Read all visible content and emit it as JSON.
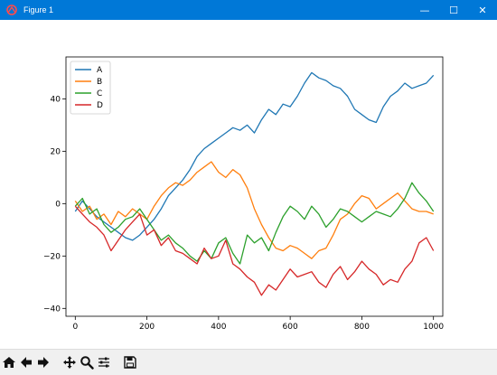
{
  "window": {
    "title": "Figure 1",
    "controls": {
      "minimize": "—",
      "maximize": "☐",
      "close": "✕"
    }
  },
  "toolbar": {
    "buttons": [
      {
        "name": "home-button",
        "icon": "home-icon"
      },
      {
        "name": "back-button",
        "icon": "arrow-left-icon"
      },
      {
        "name": "forward-button",
        "icon": "arrow-right-icon"
      },
      {
        "name": "pan-button",
        "icon": "move-icon"
      },
      {
        "name": "zoom-button",
        "icon": "magnifier-icon"
      },
      {
        "name": "configure-subplots-button",
        "icon": "sliders-icon"
      },
      {
        "name": "save-button",
        "icon": "floppy-disk-icon"
      }
    ]
  },
  "chart_data": {
    "type": "line",
    "title": "",
    "xlabel": "",
    "ylabel": "",
    "xlim": [
      -26,
      1026
    ],
    "ylim": [
      -43,
      56
    ],
    "xticks": [
      0,
      200,
      400,
      600,
      800,
      1000
    ],
    "yticks": [
      -40,
      -20,
      0,
      20,
      40
    ],
    "grid": false,
    "legend_position": "upper-left",
    "series": [
      {
        "name": "A",
        "color": "#1f77b4",
        "x": [
          0,
          20,
          40,
          60,
          80,
          100,
          120,
          140,
          160,
          180,
          200,
          220,
          240,
          260,
          280,
          300,
          320,
          340,
          360,
          380,
          400,
          420,
          440,
          460,
          480,
          500,
          520,
          540,
          560,
          580,
          600,
          620,
          640,
          660,
          680,
          700,
          720,
          740,
          760,
          780,
          800,
          820,
          840,
          860,
          880,
          900,
          920,
          940,
          960,
          980,
          1000
        ],
        "y": [
          -3,
          1,
          -2,
          -5,
          -7,
          -9,
          -11,
          -13,
          -14,
          -12,
          -9,
          -6,
          -2,
          3,
          6,
          9,
          13,
          18,
          21,
          23,
          25,
          27,
          29,
          28,
          30,
          27,
          32,
          36,
          34,
          38,
          37,
          41,
          46,
          50,
          48,
          47,
          45,
          44,
          41,
          36,
          34,
          32,
          31,
          37,
          41,
          43,
          46,
          44,
          45,
          46,
          49
        ]
      },
      {
        "name": "B",
        "color": "#ff7f0e",
        "x": [
          0,
          20,
          40,
          60,
          80,
          100,
          120,
          140,
          160,
          180,
          200,
          220,
          240,
          260,
          280,
          300,
          320,
          340,
          360,
          380,
          400,
          420,
          440,
          460,
          480,
          500,
          520,
          540,
          560,
          580,
          600,
          620,
          640,
          660,
          680,
          700,
          720,
          740,
          760,
          780,
          800,
          820,
          840,
          860,
          880,
          900,
          920,
          940,
          960,
          980,
          1000
        ],
        "y": [
          1,
          -3,
          -1,
          -6,
          -4,
          -8,
          -3,
          -5,
          -2,
          -4,
          -6,
          -1,
          3,
          6,
          8,
          7,
          9,
          12,
          14,
          16,
          12,
          10,
          13,
          11,
          6,
          -2,
          -8,
          -13,
          -17,
          -18,
          -16,
          -17,
          -19,
          -21,
          -18,
          -17,
          -12,
          -6,
          -4,
          0,
          3,
          2,
          -2,
          0,
          2,
          4,
          1,
          -2,
          -3,
          -3,
          -4
        ]
      },
      {
        "name": "C",
        "color": "#2ca02c",
        "x": [
          0,
          20,
          40,
          60,
          80,
          100,
          120,
          140,
          160,
          180,
          200,
          220,
          240,
          260,
          280,
          300,
          320,
          340,
          360,
          380,
          400,
          420,
          440,
          460,
          480,
          500,
          520,
          540,
          560,
          580,
          600,
          620,
          640,
          660,
          680,
          700,
          720,
          740,
          760,
          780,
          800,
          820,
          840,
          860,
          880,
          900,
          920,
          940,
          960,
          980,
          1000
        ],
        "y": [
          -1,
          2,
          -4,
          -2,
          -8,
          -11,
          -9,
          -6,
          -5,
          -2,
          -6,
          -10,
          -14,
          -12,
          -15,
          -17,
          -20,
          -22,
          -18,
          -21,
          -15,
          -13,
          -19,
          -23,
          -12,
          -15,
          -13,
          -18,
          -11,
          -5,
          -1,
          -3,
          -6,
          -1,
          -4,
          -9,
          -6,
          -2,
          -3,
          -5,
          -7,
          -5,
          -3,
          -4,
          -5,
          -2,
          2,
          8,
          4,
          1,
          -3
        ]
      },
      {
        "name": "D",
        "color": "#d62728",
        "x": [
          0,
          20,
          40,
          60,
          80,
          100,
          120,
          140,
          160,
          180,
          200,
          220,
          240,
          260,
          280,
          300,
          320,
          340,
          360,
          380,
          400,
          420,
          440,
          460,
          480,
          500,
          520,
          540,
          560,
          580,
          600,
          620,
          640,
          660,
          680,
          700,
          720,
          740,
          760,
          780,
          800,
          820,
          840,
          860,
          880,
          900,
          920,
          940,
          960,
          980,
          1000
        ],
        "y": [
          -1,
          -4,
          -7,
          -9,
          -12,
          -18,
          -14,
          -10,
          -7,
          -4,
          -12,
          -10,
          -16,
          -13,
          -18,
          -19,
          -21,
          -23,
          -17,
          -21,
          -20,
          -14,
          -23,
          -25,
          -28,
          -30,
          -35,
          -31,
          -33,
          -29,
          -25,
          -28,
          -27,
          -26,
          -30,
          -32,
          -27,
          -24,
          -29,
          -26,
          -22,
          -25,
          -27,
          -31,
          -29,
          -30,
          -25,
          -22,
          -15,
          -13,
          -18
        ]
      }
    ]
  }
}
